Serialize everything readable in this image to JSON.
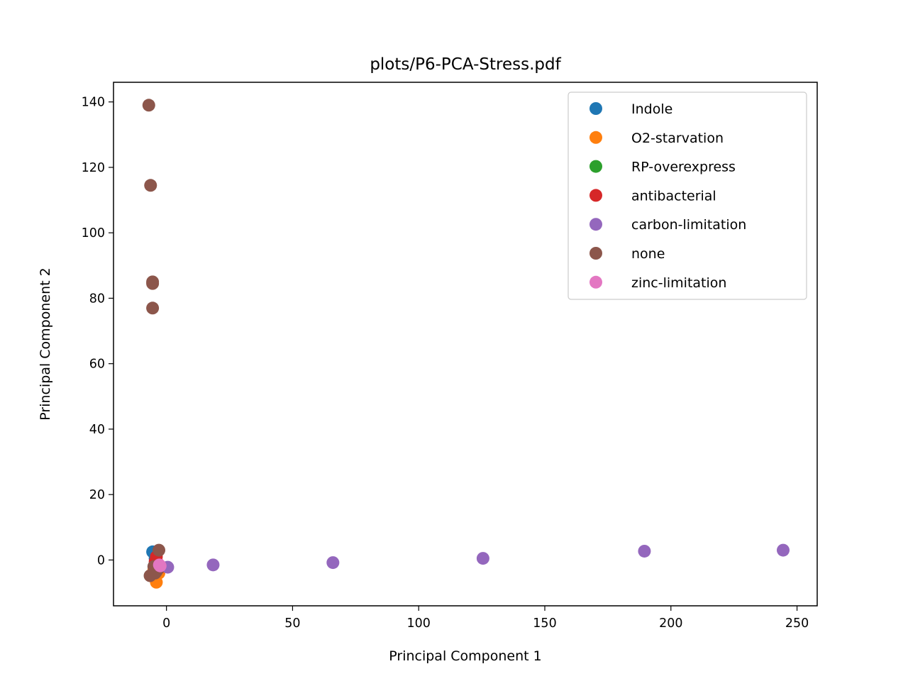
{
  "chart_data": {
    "type": "scatter",
    "title": "plots/P6-PCA-Stress.pdf",
    "xlabel": "Principal Component 1",
    "ylabel": "Principal Component 2",
    "xlim": [
      -21,
      258
    ],
    "ylim": [
      -14,
      146
    ],
    "xticks": [
      0,
      50,
      100,
      150,
      200,
      250
    ],
    "yticks": [
      0,
      20,
      40,
      60,
      80,
      100,
      120,
      140
    ],
    "legend_position": "upper right",
    "grid": false,
    "series": [
      {
        "name": "Indole",
        "color": "#1f77b4",
        "points": [
          [
            -5.5,
            2.5
          ],
          [
            -4.5,
            0.5
          ],
          [
            -5,
            -2
          ],
          [
            -3.5,
            -1
          ]
        ]
      },
      {
        "name": "O2-starvation",
        "color": "#ff7f0e",
        "points": [
          [
            -4,
            -6.8
          ],
          [
            -4.5,
            -5.5
          ],
          [
            -3,
            -4
          ],
          [
            -5,
            -3
          ]
        ]
      },
      {
        "name": "RP-overexpress",
        "color": "#2ca02c",
        "points": [
          [
            -4,
            -2
          ],
          [
            -3,
            -1.5
          ]
        ]
      },
      {
        "name": "antibacterial",
        "color": "#d62728",
        "points": [
          [
            -4.5,
            -0.5
          ],
          [
            -3.5,
            -1
          ],
          [
            -4,
            1
          ],
          [
            -3,
            -2.5
          ]
        ]
      },
      {
        "name": "carbon-limitation",
        "color": "#9467bd",
        "points": [
          [
            0.5,
            -2.2
          ],
          [
            18.5,
            -1.5
          ],
          [
            66,
            -0.8
          ],
          [
            125.5,
            0.5
          ],
          [
            189.5,
            2.7
          ],
          [
            244.5,
            3
          ]
        ]
      },
      {
        "name": "none",
        "color": "#8c564b",
        "points": [
          [
            -7,
            139
          ],
          [
            -6.3,
            114.5
          ],
          [
            -5.5,
            85
          ],
          [
            -5.5,
            84.5
          ],
          [
            -5.5,
            77
          ],
          [
            -3,
            3
          ],
          [
            -6.5,
            -4.8
          ],
          [
            -4.5,
            -4
          ],
          [
            -5,
            -2
          ],
          [
            -4,
            -3.5
          ],
          [
            -3.5,
            -2.8
          ]
        ]
      },
      {
        "name": "zinc-limitation",
        "color": "#e377c2",
        "points": [
          [
            -2.5,
            -1.8
          ],
          [
            -2.8,
            -1.5
          ]
        ]
      }
    ]
  }
}
